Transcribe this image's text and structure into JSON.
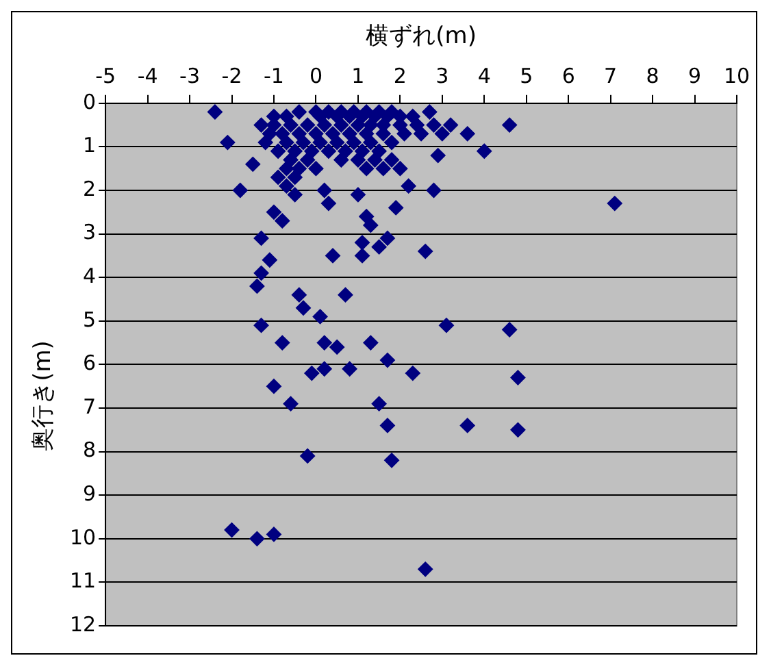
{
  "chart_data": {
    "type": "scatter",
    "xlabel": "横ずれ(m)",
    "ylabel": "奥行き(m)",
    "xlim": [
      -5,
      10
    ],
    "xticks": [
      -5,
      -4,
      -3,
      -2,
      -1,
      0,
      1,
      2,
      3,
      4,
      5,
      6,
      7,
      8,
      9,
      10
    ],
    "ylim": [
      12,
      0
    ],
    "yticks": [
      0,
      1,
      2,
      3,
      4,
      5,
      6,
      7,
      8,
      9,
      10,
      11,
      12
    ],
    "grid": "y",
    "marker": "diamond",
    "series": [
      {
        "color": "#000080",
        "x": [
          -2.4,
          -2.1,
          -1.5,
          -1.8,
          -1.0,
          -0.8,
          -1.3,
          -1.1,
          -1.3,
          -0.5,
          0.2,
          0.3,
          1.0,
          2.2,
          2.8,
          1.9,
          1.2,
          1.3,
          1.1,
          1.7,
          1.5,
          1.1,
          0.4,
          2.6,
          2.9,
          4.0,
          4.6,
          3.6,
          2.7,
          7.1,
          -1.4,
          -0.4,
          0.7,
          -0.3,
          0.1,
          -1.3,
          3.1,
          4.6,
          -0.8,
          0.2,
          0.5,
          1.3,
          1.7,
          0.8,
          -0.1,
          0.2,
          2.3,
          4.8,
          -1.0,
          -0.6,
          1.5,
          1.7,
          3.6,
          4.8,
          -0.2,
          1.8,
          -2.0,
          -1.4,
          -1.0,
          2.6,
          -0.4,
          0,
          0.3,
          0.6,
          0.9,
          1.2,
          1.5,
          1.8,
          -1.0,
          -0.7,
          0.1,
          0.5,
          0.8,
          1.1,
          1.4,
          1.7,
          2.0,
          2.3,
          -1.3,
          -1.0,
          -0.6,
          -0.2,
          0.2,
          0.6,
          1.0,
          1.3,
          1.6,
          2.0,
          2.4,
          2.8,
          3.2,
          -1.1,
          -0.8,
          -0.4,
          0,
          0.4,
          0.8,
          1.2,
          1.6,
          2.1,
          2.5,
          3.0,
          -1.2,
          -0.7,
          -0.3,
          0.1,
          0.5,
          0.9,
          1.3,
          1.8,
          -0.9,
          -0.5,
          -0.1,
          0.3,
          0.7,
          1.1,
          1.5,
          -0.6,
          -0.2,
          0.6,
          1.0,
          1.4,
          1.8,
          -0.7,
          -0.4,
          0,
          1.2,
          1.6,
          2.0,
          -0.9,
          -0.5,
          -0.7
        ],
        "values": [
          0.2,
          0.9,
          1.4,
          2.0,
          2.5,
          2.7,
          3.1,
          3.6,
          3.9,
          2.1,
          2.0,
          2.3,
          2.1,
          1.9,
          2.0,
          2.4,
          2.6,
          2.8,
          3.2,
          3.1,
          3.3,
          3.5,
          3.5,
          3.4,
          1.2,
          1.1,
          0.5,
          0.7,
          0.2,
          2.3,
          4.2,
          4.4,
          4.4,
          4.7,
          4.9,
          5.1,
          5.1,
          5.2,
          5.5,
          5.5,
          5.6,
          5.5,
          5.9,
          6.1,
          6.2,
          6.1,
          6.2,
          6.3,
          6.5,
          6.9,
          6.9,
          7.4,
          7.4,
          7.5,
          8.1,
          8.2,
          9.8,
          10.0,
          9.9,
          10.7,
          0.2,
          0.2,
          0.2,
          0.2,
          0.2,
          0.2,
          0.2,
          0.2,
          0.3,
          0.3,
          0.3,
          0.3,
          0.3,
          0.3,
          0.3,
          0.3,
          0.3,
          0.3,
          0.5,
          0.5,
          0.5,
          0.5,
          0.5,
          0.5,
          0.5,
          0.5,
          0.5,
          0.5,
          0.5,
          0.5,
          0.5,
          0.7,
          0.7,
          0.7,
          0.7,
          0.7,
          0.7,
          0.7,
          0.7,
          0.7,
          0.7,
          0.7,
          0.9,
          0.9,
          0.9,
          0.9,
          0.9,
          0.9,
          0.9,
          0.9,
          1.1,
          1.1,
          1.1,
          1.1,
          1.1,
          1.1,
          1.1,
          1.3,
          1.3,
          1.3,
          1.3,
          1.3,
          1.3,
          1.5,
          1.5,
          1.5,
          1.5,
          1.5,
          1.5,
          1.7,
          1.7,
          1.9
        ]
      }
    ]
  }
}
